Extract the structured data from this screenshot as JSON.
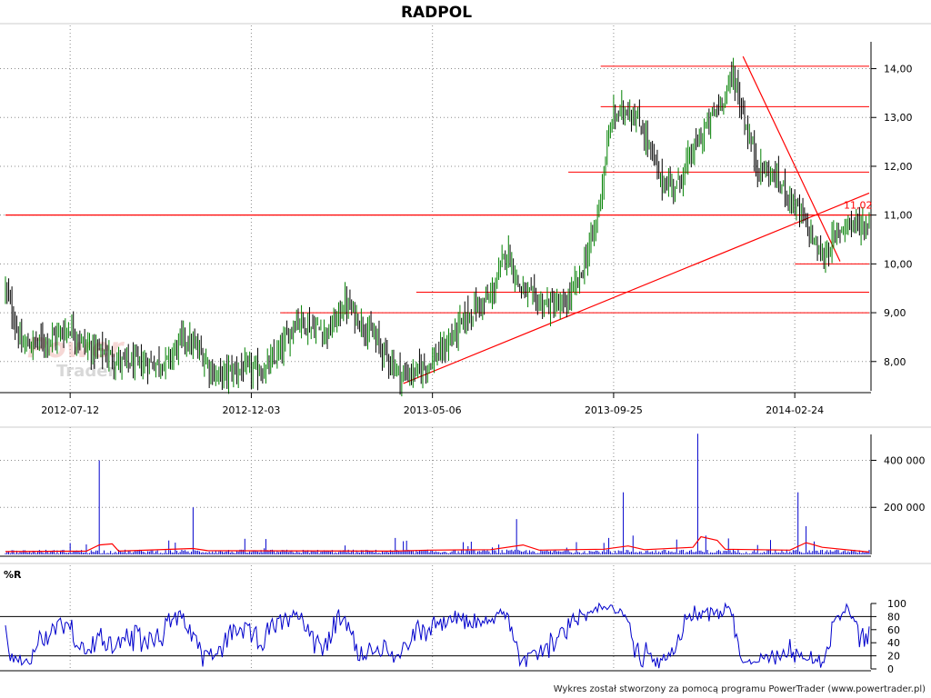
{
  "title": "RADPOL",
  "footer": "Wykres został stworzony za pomocą programu PowerTrader (www.powertrader.pl)",
  "watermark": {
    "line1": "Power",
    "line2": "Trader"
  },
  "colors": {
    "candle_up": "#008000",
    "candle_down": "#000000",
    "trendline": "#ff0000",
    "volume": "#0000cc",
    "volume_avg": "#ff0000",
    "williams": "#0000cc",
    "frame": "#000000"
  },
  "chart_data": [
    {
      "type": "candlestick",
      "panel": "price",
      "title": "RADPOL",
      "xlabel": "",
      "ylabel": "",
      "ylim": [
        7.4,
        14.55
      ],
      "grid": true,
      "x_ticks": [
        "2012-07-12",
        "2012-12-03",
        "2013-05-06",
        "2013-09-25",
        "2014-02-24"
      ],
      "y_ticks": [
        {
          "v": 8,
          "label": "8,00"
        },
        {
          "v": 9,
          "label": "9,00"
        },
        {
          "v": 10,
          "label": "10,00"
        },
        {
          "v": 11,
          "label": "11,00"
        },
        {
          "v": 12,
          "label": "12,00"
        },
        {
          "v": 13,
          "label": "13,00"
        },
        {
          "v": 14,
          "label": "14,00"
        }
      ],
      "close_path": [
        {
          "t": 0,
          "v": 9.5
        },
        {
          "t": 10,
          "v": 8.3
        },
        {
          "t": 20,
          "v": 8.4
        },
        {
          "t": 30,
          "v": 8.5
        },
        {
          "t": 40,
          "v": 8.7
        },
        {
          "t": 50,
          "v": 8.3
        },
        {
          "t": 60,
          "v": 8.2
        },
        {
          "t": 70,
          "v": 8.0
        },
        {
          "t": 85,
          "v": 7.95
        },
        {
          "t": 100,
          "v": 8.0
        },
        {
          "t": 110,
          "v": 8.5
        },
        {
          "t": 120,
          "v": 8.2
        },
        {
          "t": 130,
          "v": 7.7
        },
        {
          "t": 145,
          "v": 7.85
        },
        {
          "t": 160,
          "v": 7.8
        },
        {
          "t": 170,
          "v": 8.2
        },
        {
          "t": 180,
          "v": 8.9
        },
        {
          "t": 190,
          "v": 8.7
        },
        {
          "t": 200,
          "v": 8.6
        },
        {
          "t": 210,
          "v": 9.2
        },
        {
          "t": 220,
          "v": 8.8
        },
        {
          "t": 230,
          "v": 8.4
        },
        {
          "t": 245,
          "v": 7.7
        },
        {
          "t": 255,
          "v": 7.8
        },
        {
          "t": 270,
          "v": 8.2
        },
        {
          "t": 280,
          "v": 8.7
        },
        {
          "t": 290,
          "v": 9.1
        },
        {
          "t": 300,
          "v": 9.3
        },
        {
          "t": 310,
          "v": 10.3
        },
        {
          "t": 318,
          "v": 9.5
        },
        {
          "t": 330,
          "v": 9.2
        },
        {
          "t": 345,
          "v": 9.1
        },
        {
          "t": 355,
          "v": 9.7
        },
        {
          "t": 365,
          "v": 10.8
        },
        {
          "t": 375,
          "v": 13.0
        },
        {
          "t": 385,
          "v": 13.2
        },
        {
          "t": 395,
          "v": 12.7
        },
        {
          "t": 405,
          "v": 11.7
        },
        {
          "t": 415,
          "v": 11.6
        },
        {
          "t": 425,
          "v": 12.3
        },
        {
          "t": 435,
          "v": 12.9
        },
        {
          "t": 445,
          "v": 13.5
        },
        {
          "t": 450,
          "v": 13.9
        },
        {
          "t": 458,
          "v": 12.8
        },
        {
          "t": 465,
          "v": 12.0
        },
        {
          "t": 475,
          "v": 11.8
        },
        {
          "t": 485,
          "v": 11.4
        },
        {
          "t": 495,
          "v": 10.8
        },
        {
          "t": 505,
          "v": 10.1
        },
        {
          "t": 512,
          "v": 10.5
        },
        {
          "t": 520,
          "v": 10.9
        },
        {
          "t": 527,
          "v": 10.8
        },
        {
          "t": 534,
          "v": 10.8
        }
      ],
      "last_value": {
        "v": 11.02,
        "label": "11,02"
      },
      "horizontal_lines": [
        {
          "v": 14.05,
          "t_start": 368,
          "t_end": 534
        },
        {
          "v": 13.22,
          "t_start": 368,
          "t_end": 534
        },
        {
          "v": 11.88,
          "t_start": 348,
          "t_end": 534
        },
        {
          "v": 11.0,
          "t_start": 0,
          "t_end": 534
        },
        {
          "v": 10.0,
          "t_start": 488,
          "t_end": 534
        },
        {
          "v": 9.42,
          "t_start": 254,
          "t_end": 534
        },
        {
          "v": 9.0,
          "t_start": 170,
          "t_end": 534
        }
      ],
      "trend_lines": [
        {
          "t1": 246,
          "v1": 7.55,
          "t2": 534,
          "v2": 11.45
        },
        {
          "t1": 456,
          "v1": 14.25,
          "t2": 516,
          "v2": 10.05
        }
      ]
    },
    {
      "type": "bar",
      "panel": "volume",
      "ylim": [
        0,
        510000
      ],
      "y_ticks": [
        {
          "v": 200000,
          "label": "200 000"
        },
        {
          "v": 400000,
          "label": "400 000"
        }
      ],
      "base_level": 12000,
      "spikes": [
        {
          "t": 40,
          "v": 48000
        },
        {
          "t": 58,
          "v": 400000
        },
        {
          "t": 105,
          "v": 50000
        },
        {
          "t": 116,
          "v": 200000
        },
        {
          "t": 160,
          "v": 26000
        },
        {
          "t": 210,
          "v": 38000
        },
        {
          "t": 246,
          "v": 56000
        },
        {
          "t": 283,
          "v": 52000
        },
        {
          "t": 305,
          "v": 42000
        },
        {
          "t": 316,
          "v": 150000
        },
        {
          "t": 373,
          "v": 70000
        },
        {
          "t": 382,
          "v": 264000
        },
        {
          "t": 388,
          "v": 80000
        },
        {
          "t": 428,
          "v": 513000
        },
        {
          "t": 433,
          "v": 80000
        },
        {
          "t": 465,
          "v": 40000
        },
        {
          "t": 490,
          "v": 264000
        },
        {
          "t": 495,
          "v": 120000
        },
        {
          "t": 500,
          "v": 55000
        }
      ],
      "average_line": [
        {
          "t": 0,
          "v": 12000
        },
        {
          "t": 50,
          "v": 14000
        },
        {
          "t": 58,
          "v": 40000
        },
        {
          "t": 66,
          "v": 45000
        },
        {
          "t": 70,
          "v": 14000
        },
        {
          "t": 116,
          "v": 25000
        },
        {
          "t": 125,
          "v": 16000
        },
        {
          "t": 240,
          "v": 14000
        },
        {
          "t": 262,
          "v": 18000
        },
        {
          "t": 300,
          "v": 20000
        },
        {
          "t": 320,
          "v": 40000
        },
        {
          "t": 330,
          "v": 18000
        },
        {
          "t": 370,
          "v": 22000
        },
        {
          "t": 385,
          "v": 36000
        },
        {
          "t": 395,
          "v": 20000
        },
        {
          "t": 425,
          "v": 30000
        },
        {
          "t": 430,
          "v": 75000
        },
        {
          "t": 440,
          "v": 60000
        },
        {
          "t": 445,
          "v": 22000
        },
        {
          "t": 485,
          "v": 18000
        },
        {
          "t": 495,
          "v": 50000
        },
        {
          "t": 505,
          "v": 30000
        },
        {
          "t": 534,
          "v": 10000
        }
      ]
    },
    {
      "type": "line",
      "panel": "oscillator",
      "name": "%R",
      "ylim": [
        0,
        100
      ],
      "y_ticks": [
        {
          "v": 0,
          "label": "0"
        },
        {
          "v": 20,
          "label": "20"
        },
        {
          "v": 40,
          "label": "40"
        },
        {
          "v": 60,
          "label": "60"
        },
        {
          "v": 80,
          "label": "80"
        },
        {
          "v": 100,
          "label": "100"
        }
      ],
      "reference_levels": [
        20,
        80
      ]
    }
  ]
}
